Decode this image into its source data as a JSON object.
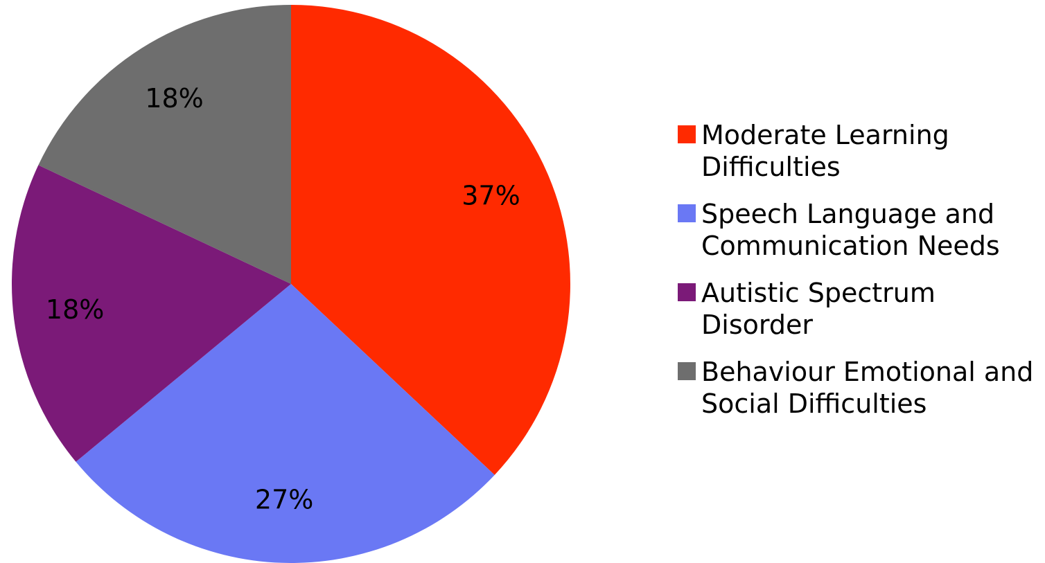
{
  "chart_data": {
    "type": "pie",
    "categories": [
      "Moderate Learning Difficulties",
      "Speech Language and Communication Needs",
      "Autistic Spectrum Disorder",
      "Behaviour Emotional and Social Difficulties"
    ],
    "values": [
      37,
      27,
      18,
      18
    ],
    "value_labels": [
      "37%",
      "27%",
      "18%",
      "18%"
    ],
    "colors": [
      "#ff2a00",
      "#6a78f4",
      "#7b1a78",
      "#6e6e6e"
    ],
    "legend": "right"
  }
}
